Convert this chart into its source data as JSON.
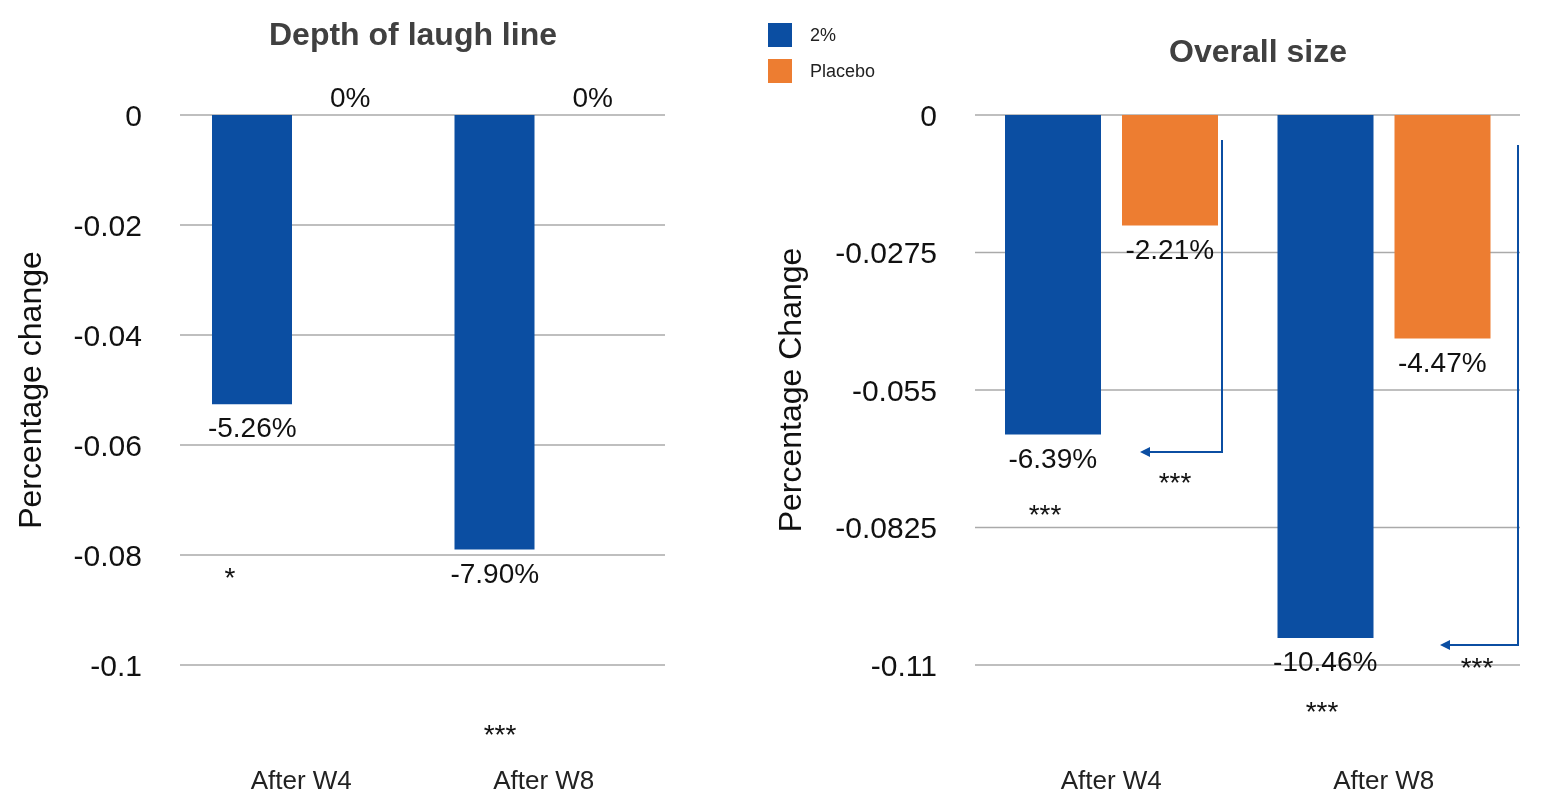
{
  "chart_data": [
    {
      "type": "bar",
      "title": "Depth of laugh line",
      "ylabel": "Percentage change",
      "categories": [
        "After W4",
        "After W8"
      ],
      "series": [
        {
          "color": "#0b4ea2",
          "values": [
            -0.0526,
            -0.079
          ],
          "value_labels": [
            "-5.26%",
            "-7.90%"
          ]
        },
        {
          "color": "#ed7d31",
          "values": [
            0,
            0
          ],
          "value_labels": [
            "0%",
            "0%"
          ]
        }
      ],
      "ylim": [
        -0.1,
        0
      ],
      "yticks": [
        0,
        -0.02,
        -0.04,
        -0.06,
        -0.08,
        -0.1
      ],
      "grid": "y",
      "legend": false,
      "annotations": [
        "*",
        "***"
      ]
    },
    {
      "type": "bar",
      "title": "Overall size",
      "ylabel": "Percentage Change",
      "categories": [
        "After W4",
        "After W8"
      ],
      "series": [
        {
          "name": "2%",
          "color": "#0b4ea2",
          "values": [
            -0.0639,
            -0.1046
          ],
          "value_labels": [
            "-6.39%",
            "-10.46%"
          ]
        },
        {
          "name": "Placebo",
          "color": "#ed7d31",
          "values": [
            -0.0221,
            -0.0447
          ],
          "value_labels": [
            "-2.21%",
            "-4.47%"
          ]
        }
      ],
      "ylim": [
        -0.11,
        0
      ],
      "yticks": [
        0,
        -0.0275,
        -0.055,
        -0.0825,
        -0.11
      ],
      "grid": "y",
      "legend": "top left",
      "annotations": [
        "***",
        "***",
        "***",
        "***"
      ]
    }
  ]
}
